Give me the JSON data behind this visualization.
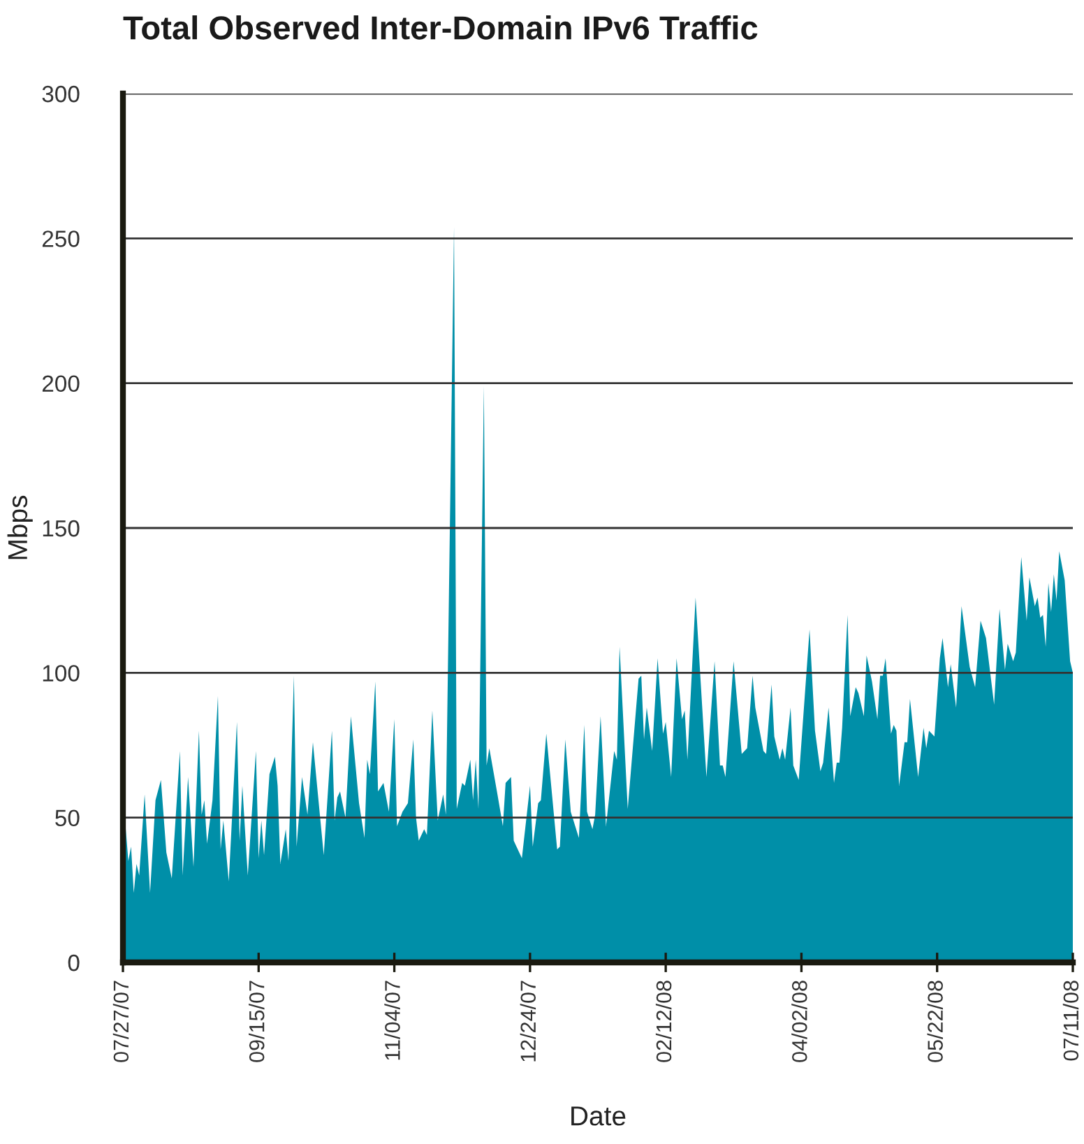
{
  "chart_data": {
    "type": "area",
    "title": "Total Observed Inter-Domain IPv6 Traffic",
    "xlabel": "Date",
    "ylabel": "Mbps",
    "x": [
      "2007-07-27",
      "2007-07-29",
      "2007-07-30",
      "2007-07-31",
      "2007-08-01",
      "2007-08-02",
      "2007-08-04",
      "2007-08-06",
      "2007-08-08",
      "2007-08-10",
      "2007-08-12",
      "2007-08-14",
      "2007-08-17",
      "2007-08-18",
      "2007-08-20",
      "2007-08-22",
      "2007-08-24",
      "2007-08-25",
      "2007-08-26",
      "2007-08-27",
      "2007-08-29",
      "2007-08-31",
      "2007-09-01",
      "2007-09-02",
      "2007-09-04",
      "2007-09-07",
      "2007-09-08",
      "2007-09-09",
      "2007-09-11",
      "2007-09-14",
      "2007-09-15",
      "2007-09-16",
      "2007-09-17",
      "2007-09-19",
      "2007-09-21",
      "2007-09-22",
      "2007-09-23",
      "2007-09-25",
      "2007-09-26",
      "2007-09-28",
      "2007-09-29",
      "2007-10-01",
      "2007-10-03",
      "2007-10-05",
      "2007-10-09",
      "2007-10-12",
      "2007-10-13",
      "2007-10-14",
      "2007-10-15",
      "2007-10-17",
      "2007-10-19",
      "2007-10-22",
      "2007-10-24",
      "2007-10-25",
      "2007-10-26",
      "2007-10-28",
      "2007-10-29",
      "2007-10-31",
      "2007-11-02",
      "2007-11-04",
      "2007-11-05",
      "2007-11-07",
      "2007-11-09",
      "2007-11-11",
      "2007-11-12",
      "2007-11-13",
      "2007-11-15",
      "2007-11-16",
      "2007-11-18",
      "2007-11-20",
      "2007-11-22",
      "2007-11-23",
      "2007-11-26",
      "2007-11-27",
      "2007-11-29",
      "2007-11-30",
      "2007-12-02",
      "2007-12-03",
      "2007-12-04",
      "2007-12-05",
      "2007-12-07",
      "2007-12-08",
      "2007-12-09",
      "2007-12-12",
      "2007-12-14",
      "2007-12-15",
      "2007-12-17",
      "2007-12-18",
      "2007-12-21",
      "2007-12-24",
      "2007-12-25",
      "2007-12-27",
      "2007-12-28",
      "2007-12-30",
      "2008-01-03",
      "2008-01-04",
      "2008-01-06",
      "2008-01-08",
      "2008-01-11",
      "2008-01-13",
      "2008-01-14",
      "2008-01-16",
      "2008-01-17",
      "2008-01-19",
      "2008-01-21",
      "2008-01-24",
      "2008-01-25",
      "2008-01-26",
      "2008-01-29",
      "2008-02-02",
      "2008-02-03",
      "2008-02-04",
      "2008-02-05",
      "2008-02-07",
      "2008-02-09",
      "2008-02-11",
      "2008-02-12",
      "2008-02-14",
      "2008-02-16",
      "2008-02-18",
      "2008-02-19",
      "2008-02-20",
      "2008-02-23",
      "2008-02-27",
      "2008-03-01",
      "2008-03-03",
      "2008-03-04",
      "2008-03-05",
      "2008-03-08",
      "2008-03-11",
      "2008-03-13",
      "2008-03-15",
      "2008-03-16",
      "2008-03-19",
      "2008-03-20",
      "2008-03-22",
      "2008-03-23",
      "2008-03-25",
      "2008-03-26",
      "2008-03-27",
      "2008-03-29",
      "2008-03-30",
      "2008-04-01",
      "2008-04-05",
      "2008-04-07",
      "2008-04-09",
      "2008-04-10",
      "2008-04-12",
      "2008-04-14",
      "2008-04-15",
      "2008-04-16",
      "2008-04-17",
      "2008-04-19",
      "2008-04-20",
      "2008-04-22",
      "2008-04-23",
      "2008-04-25",
      "2008-04-26",
      "2008-04-28",
      "2008-04-30",
      "2008-05-01",
      "2008-05-02",
      "2008-05-03",
      "2008-05-05",
      "2008-05-06",
      "2008-05-07",
      "2008-05-08",
      "2008-05-10",
      "2008-05-11",
      "2008-05-12",
      "2008-05-15",
      "2008-05-17",
      "2008-05-18",
      "2008-05-19",
      "2008-05-21",
      "2008-05-23",
      "2008-05-24",
      "2008-05-26",
      "2008-05-27",
      "2008-05-29",
      "2008-05-31",
      "2008-06-03",
      "2008-06-05",
      "2008-06-07",
      "2008-06-09",
      "2008-06-12",
      "2008-06-14",
      "2008-06-16",
      "2008-06-17",
      "2008-06-19",
      "2008-06-20",
      "2008-06-22",
      "2008-06-24",
      "2008-06-25",
      "2008-06-27",
      "2008-06-28",
      "2008-06-29",
      "2008-06-30",
      "2008-07-01",
      "2008-07-02",
      "2008-07-03",
      "2008-07-04",
      "2008-07-05",
      "2008-07-06",
      "2008-07-08",
      "2008-07-10",
      "2008-07-11"
    ],
    "series": [
      {
        "color": "#008fa8",
        "values": [
          58,
          35,
          40,
          24,
          34,
          30,
          58,
          24,
          56,
          63,
          38,
          29,
          73,
          30,
          64,
          33,
          80,
          51,
          56,
          41,
          56,
          92,
          39,
          49,
          28,
          83,
          42,
          61,
          30,
          73,
          36,
          49,
          37,
          65,
          71,
          61,
          34,
          46,
          35,
          99,
          40,
          64,
          51,
          76,
          37,
          80,
          49,
          57,
          59,
          50,
          85,
          55,
          43,
          70,
          65,
          97,
          59,
          62,
          52,
          84,
          47,
          52,
          55,
          77,
          50,
          42,
          46,
          44,
          87,
          49,
          58,
          51,
          254,
          53,
          62,
          61,
          70,
          56,
          70,
          53,
          199,
          68,
          74,
          58,
          47,
          62,
          64,
          42,
          36,
          61,
          40,
          55,
          56,
          79,
          39,
          40,
          77,
          52,
          43,
          82,
          52,
          46,
          51,
          85,
          47,
          73,
          70,
          109,
          53,
          98,
          99,
          77,
          88,
          73,
          105,
          79,
          83,
          64,
          105,
          84,
          87,
          70,
          126,
          64,
          104,
          68,
          68,
          64,
          104,
          72,
          74,
          99,
          88,
          73,
          72,
          96,
          78,
          70,
          74,
          70,
          88,
          68,
          63,
          115,
          80,
          66,
          69,
          88,
          62,
          69,
          69,
          81,
          120,
          85,
          95,
          93,
          85,
          106,
          97,
          84,
          99,
          99,
          105,
          79,
          82,
          80,
          61,
          76,
          76,
          91,
          64,
          81,
          74,
          80,
          78,
          105,
          112,
          95,
          103,
          88,
          123,
          102,
          95,
          118,
          112,
          89,
          122,
          101,
          110,
          104,
          107,
          140,
          118,
          133,
          123,
          126,
          119,
          120,
          109,
          131,
          121,
          134,
          125,
          142,
          132,
          104,
          100
        ]
      }
    ],
    "xlim": [
      "2007-07-27",
      "2008-07-11"
    ],
    "xticks": [
      {
        "value": "2007-07-27",
        "label": "07/27/07"
      },
      {
        "value": "2007-09-15",
        "label": "09/15/07"
      },
      {
        "value": "2007-11-04",
        "label": "11/04/07"
      },
      {
        "value": "2007-12-24",
        "label": "12/24/07"
      },
      {
        "value": "2008-02-12",
        "label": "02/12/08"
      },
      {
        "value": "2008-04-02",
        "label": "04/02/08"
      },
      {
        "value": "2008-05-22",
        "label": "05/22/08"
      },
      {
        "value": "2008-07-11",
        "label": "07/11/08"
      }
    ],
    "ylim": [
      0,
      300
    ],
    "yticks": [
      0,
      50,
      100,
      150,
      200,
      250,
      300
    ],
    "grid": "y",
    "legend": false,
    "marker": "none"
  }
}
